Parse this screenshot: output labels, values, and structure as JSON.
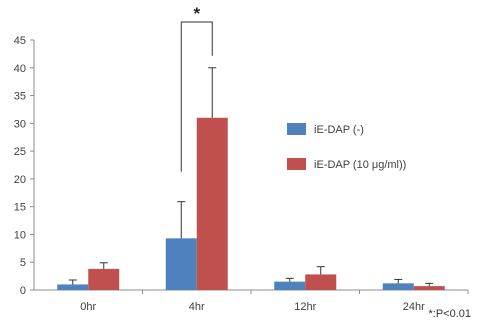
{
  "chart_data": {
    "type": "bar",
    "categories": [
      "0hr",
      "4hr",
      "12hr",
      "24hr"
    ],
    "ylim": [
      0,
      45
    ],
    "yticks": [
      0,
      5,
      10,
      15,
      20,
      25,
      30,
      35,
      40,
      45
    ],
    "grid": false,
    "legend_position": "right",
    "series": [
      {
        "name": "iE-DAP (-)",
        "color": "#4f81bd",
        "values": [
          1.0,
          9.3,
          1.5,
          1.2
        ],
        "errors": [
          0.8,
          6.6,
          0.6,
          0.7
        ]
      },
      {
        "name": "iE-DAP (10 μg/ml))",
        "color": "#c0504d",
        "values": [
          3.8,
          31.0,
          2.8,
          0.7
        ],
        "errors": [
          1.1,
          9.0,
          1.4,
          0.5
        ]
      }
    ],
    "annotations": {
      "significance_marker": "*",
      "significance_category": "4hr",
      "footnote": "*:P<0.01"
    }
  }
}
